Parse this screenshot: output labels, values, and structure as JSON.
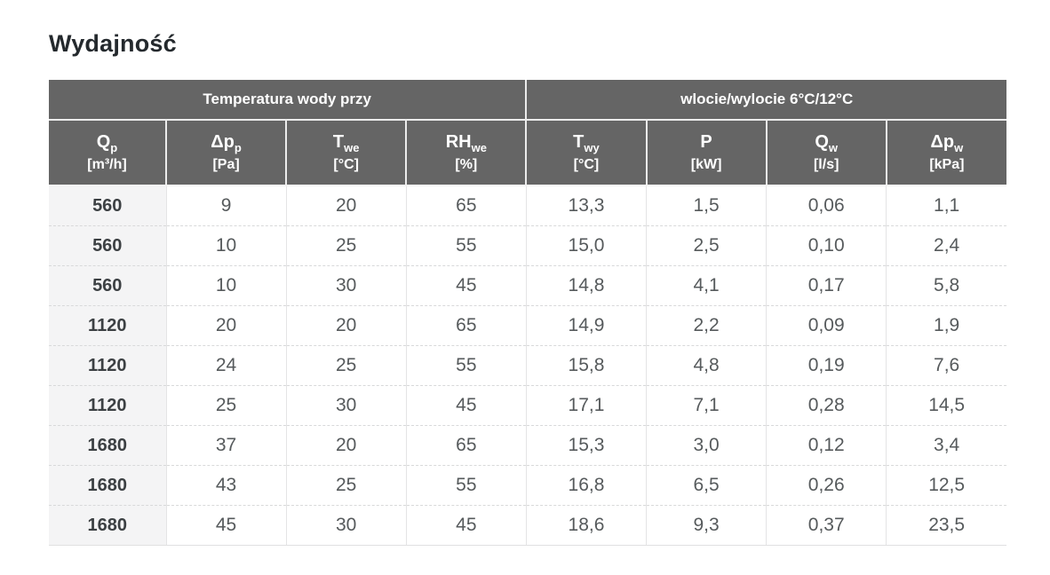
{
  "page": {
    "title": "Wydajność"
  },
  "table": {
    "group_headers": [
      {
        "label": "Temperatura wody przy",
        "colspan": 4
      },
      {
        "label": "wlocie/wylocie 6°C/12°C",
        "colspan": 4
      }
    ],
    "columns": [
      {
        "symbol": "Q",
        "sub": "p",
        "unit": "[m³/h]"
      },
      {
        "symbol": "Δp",
        "sub": "p",
        "unit": "[Pa]"
      },
      {
        "symbol": "T",
        "sub": "we",
        "unit": "[°C]"
      },
      {
        "symbol": "RH",
        "sub": "we",
        "unit": "[%]"
      },
      {
        "symbol": "T",
        "sub": "wy",
        "unit": "[°C]"
      },
      {
        "symbol": "P",
        "sub": "",
        "unit": "[kW]"
      },
      {
        "symbol": "Q",
        "sub": "w",
        "unit": "[l/s]"
      },
      {
        "symbol": "Δp",
        "sub": "w",
        "unit": "[kPa]"
      }
    ],
    "rows": [
      [
        "560",
        "9",
        "20",
        "65",
        "13,3",
        "1,5",
        "0,06",
        "1,1"
      ],
      [
        "560",
        "10",
        "25",
        "55",
        "15,0",
        "2,5",
        "0,10",
        "2,4"
      ],
      [
        "560",
        "10",
        "30",
        "45",
        "14,8",
        "4,1",
        "0,17",
        "5,8"
      ],
      [
        "1120",
        "20",
        "20",
        "65",
        "14,9",
        "2,2",
        "0,09",
        "1,9"
      ],
      [
        "1120",
        "24",
        "25",
        "55",
        "15,8",
        "4,8",
        "0,19",
        "7,6"
      ],
      [
        "1120",
        "25",
        "30",
        "45",
        "17,1",
        "7,1",
        "0,28",
        "14,5"
      ],
      [
        "1680",
        "37",
        "20",
        "65",
        "15,3",
        "3,0",
        "0,12",
        "3,4"
      ],
      [
        "1680",
        "43",
        "25",
        "55",
        "16,8",
        "6,5",
        "0,26",
        "12,5"
      ],
      [
        "1680",
        "45",
        "30",
        "45",
        "18,6",
        "9,3",
        "0,37",
        "23,5"
      ]
    ],
    "colors": {
      "header_bg": "#656565",
      "header_text": "#ffffff",
      "first_col_bg": "#f4f4f5",
      "cell_text": "#565a5c",
      "first_col_text": "#3c4043",
      "row_divider": "#d8d9da",
      "col_divider": "#e4e4e5",
      "title_text": "#24292d"
    }
  }
}
